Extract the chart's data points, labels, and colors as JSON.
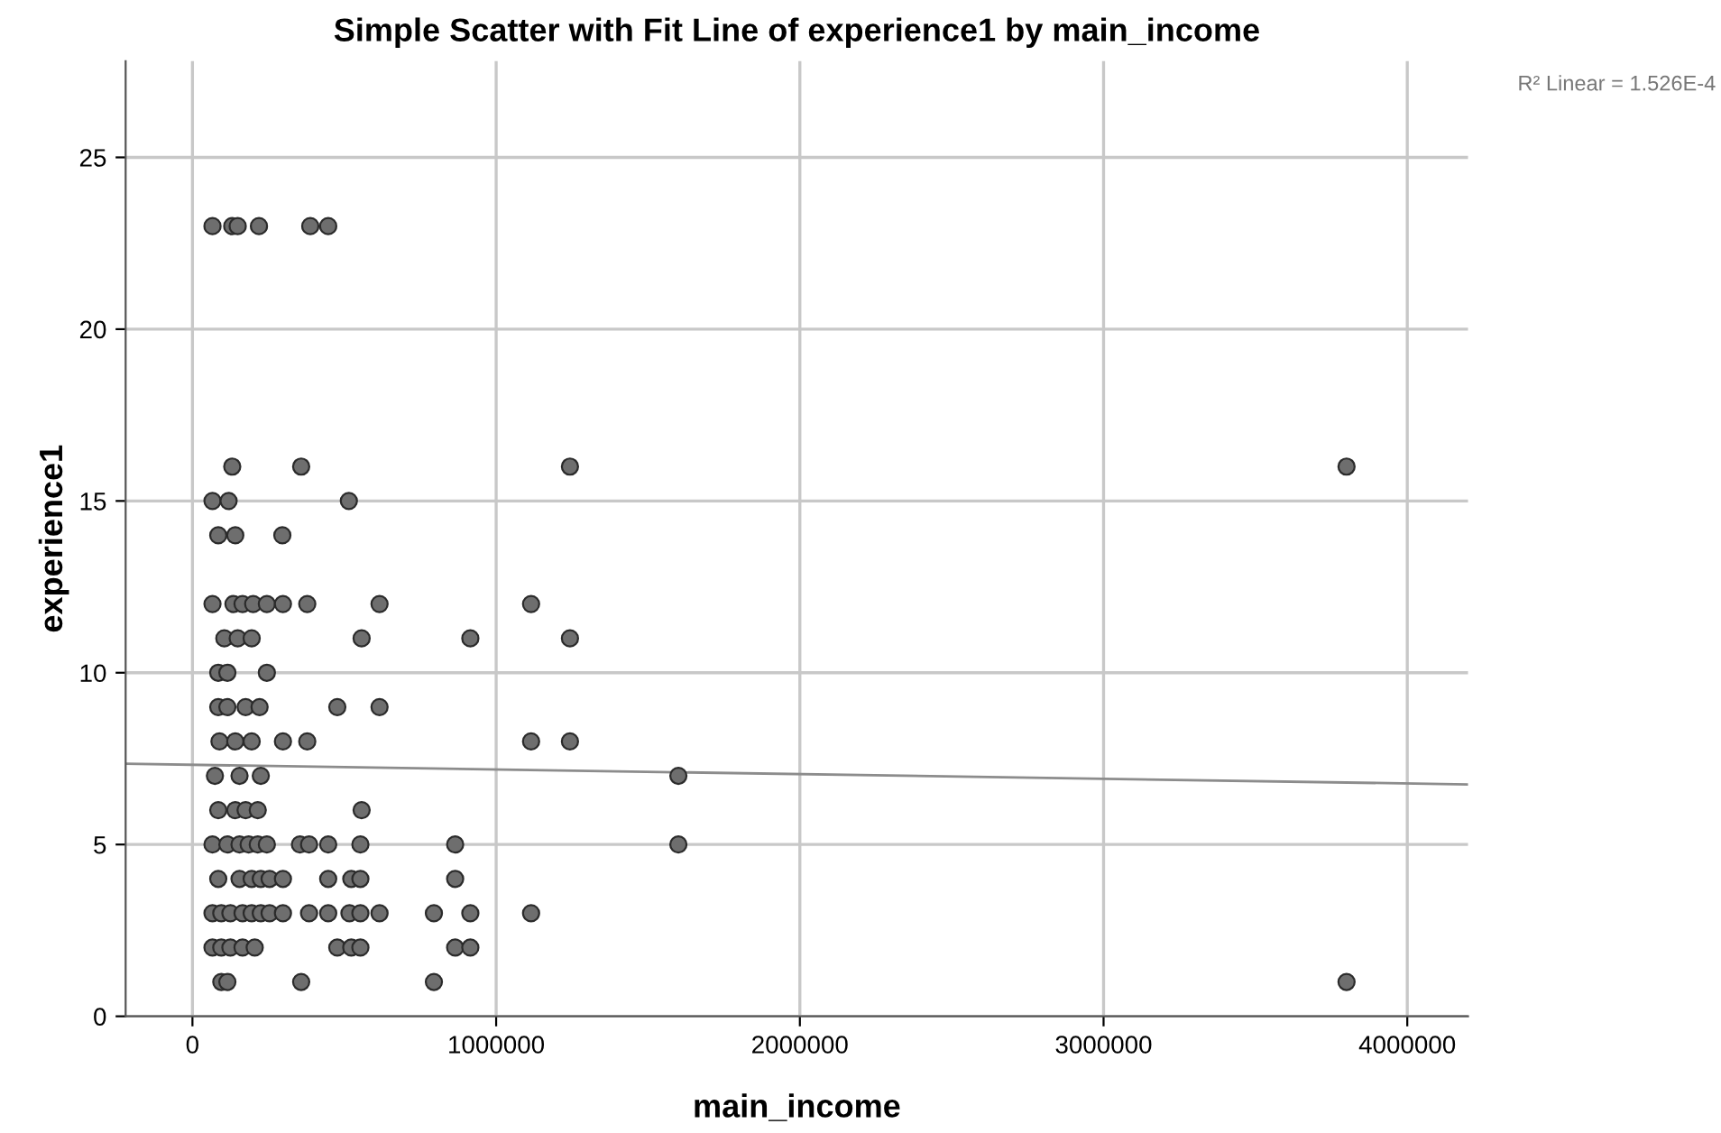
{
  "chart_data": {
    "type": "scatter",
    "title": "Simple Scatter with Fit Line of experience1 by main_income",
    "xlabel": "main_income",
    "ylabel": "experience1",
    "annotations": [
      "R² Linear = 1.526E-4"
    ],
    "xlim": [
      -220000,
      4200000
    ],
    "ylim": [
      0,
      27.8
    ],
    "xticks": [
      0,
      1000000,
      2000000,
      3000000,
      4000000
    ],
    "yticks": [
      0,
      5,
      10,
      15,
      20,
      25
    ],
    "grid": true,
    "legend": false,
    "marker": "circle",
    "series": [
      {
        "color": "#6e6e6e",
        "x": [
          66000,
          131000,
          149000,
          219000,
          388000,
          447000,
          131000,
          358000,
          1243000,
          66000,
          119000,
          515000,
          85000,
          141000,
          296000,
          66000,
          135000,
          165000,
          200000,
          245000,
          298000,
          378000,
          616000,
          1115000,
          105000,
          149000,
          195000,
          557000,
          915000,
          1243000,
          85000,
          115000,
          245000,
          85000,
          115000,
          175000,
          221000,
          477000,
          616000,
          89000,
          141000,
          195000,
          298000,
          378000,
          1115000,
          1243000,
          74000,
          155000,
          225000,
          85000,
          141000,
          175000,
          215000,
          557000,
          66000,
          115000,
          155000,
          185000,
          215000,
          245000,
          354000,
          384000,
          447000,
          553000,
          865000,
          85000,
          155000,
          195000,
          225000,
          254000,
          298000,
          447000,
          523000,
          553000,
          865000,
          66000,
          95000,
          125000,
          165000,
          195000,
          225000,
          254000,
          298000,
          384000,
          447000,
          517000,
          553000,
          616000,
          795000,
          915000,
          1115000,
          66000,
          95000,
          125000,
          165000,
          205000,
          477000,
          523000,
          553000,
          865000,
          915000,
          95000,
          115000,
          358000,
          795000,
          3800000,
          3800000,
          1600000,
          1600000
        ],
        "values": [
          23,
          23,
          23,
          23,
          23,
          23,
          16,
          16,
          16,
          15,
          15,
          15,
          14,
          14,
          14,
          12,
          12,
          12,
          12,
          12,
          12,
          12,
          12,
          12,
          11,
          11,
          11,
          11,
          11,
          11,
          10,
          10,
          10,
          9,
          9,
          9,
          9,
          9,
          9,
          8,
          8,
          8,
          8,
          8,
          8,
          8,
          7,
          7,
          7,
          6,
          6,
          6,
          6,
          6,
          5,
          5,
          5,
          5,
          5,
          5,
          5,
          5,
          5,
          5,
          5,
          4,
          4,
          4,
          4,
          4,
          4,
          4,
          4,
          4,
          4,
          3,
          3,
          3,
          3,
          3,
          3,
          3,
          3,
          3,
          3,
          3,
          3,
          3,
          3,
          3,
          3,
          2,
          2,
          2,
          2,
          2,
          2,
          2,
          2,
          2,
          2,
          1,
          1,
          1,
          1,
          16,
          1,
          7,
          5
        ]
      },
      {
        "type": "line",
        "color": "#8c8c8c",
        "marker": "none",
        "line_style": "solid",
        "x": [
          -220000,
          4200000
        ],
        "values": [
          7.35,
          6.75
        ]
      }
    ]
  }
}
